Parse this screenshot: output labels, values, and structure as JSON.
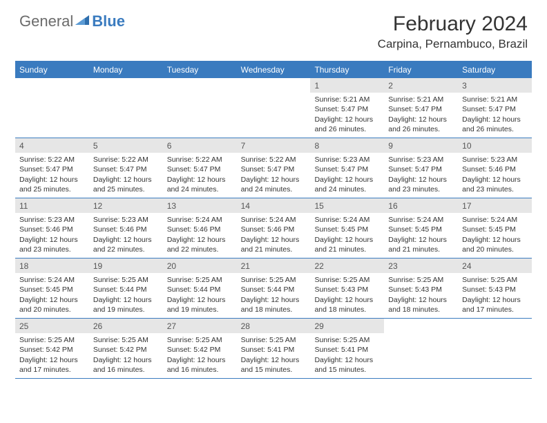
{
  "brand": {
    "general": "General",
    "blue": "Blue",
    "icon_color": "#2f6fad"
  },
  "title": "February 2024",
  "location": "Carpina, Pernambuco, Brazil",
  "colors": {
    "brand_blue": "#3a7bbf",
    "daynum_bg": "#e6e6e6",
    "text": "#333333"
  },
  "day_names": [
    "Sunday",
    "Monday",
    "Tuesday",
    "Wednesday",
    "Thursday",
    "Friday",
    "Saturday"
  ],
  "weeks": [
    [
      {
        "day": "",
        "sunrise": "",
        "sunset": "",
        "daylight": ""
      },
      {
        "day": "",
        "sunrise": "",
        "sunset": "",
        "daylight": ""
      },
      {
        "day": "",
        "sunrise": "",
        "sunset": "",
        "daylight": ""
      },
      {
        "day": "",
        "sunrise": "",
        "sunset": "",
        "daylight": ""
      },
      {
        "day": "1",
        "sunrise": "Sunrise: 5:21 AM",
        "sunset": "Sunset: 5:47 PM",
        "daylight": "Daylight: 12 hours and 26 minutes."
      },
      {
        "day": "2",
        "sunrise": "Sunrise: 5:21 AM",
        "sunset": "Sunset: 5:47 PM",
        "daylight": "Daylight: 12 hours and 26 minutes."
      },
      {
        "day": "3",
        "sunrise": "Sunrise: 5:21 AM",
        "sunset": "Sunset: 5:47 PM",
        "daylight": "Daylight: 12 hours and 26 minutes."
      }
    ],
    [
      {
        "day": "4",
        "sunrise": "Sunrise: 5:22 AM",
        "sunset": "Sunset: 5:47 PM",
        "daylight": "Daylight: 12 hours and 25 minutes."
      },
      {
        "day": "5",
        "sunrise": "Sunrise: 5:22 AM",
        "sunset": "Sunset: 5:47 PM",
        "daylight": "Daylight: 12 hours and 25 minutes."
      },
      {
        "day": "6",
        "sunrise": "Sunrise: 5:22 AM",
        "sunset": "Sunset: 5:47 PM",
        "daylight": "Daylight: 12 hours and 24 minutes."
      },
      {
        "day": "7",
        "sunrise": "Sunrise: 5:22 AM",
        "sunset": "Sunset: 5:47 PM",
        "daylight": "Daylight: 12 hours and 24 minutes."
      },
      {
        "day": "8",
        "sunrise": "Sunrise: 5:23 AM",
        "sunset": "Sunset: 5:47 PM",
        "daylight": "Daylight: 12 hours and 24 minutes."
      },
      {
        "day": "9",
        "sunrise": "Sunrise: 5:23 AM",
        "sunset": "Sunset: 5:47 PM",
        "daylight": "Daylight: 12 hours and 23 minutes."
      },
      {
        "day": "10",
        "sunrise": "Sunrise: 5:23 AM",
        "sunset": "Sunset: 5:46 PM",
        "daylight": "Daylight: 12 hours and 23 minutes."
      }
    ],
    [
      {
        "day": "11",
        "sunrise": "Sunrise: 5:23 AM",
        "sunset": "Sunset: 5:46 PM",
        "daylight": "Daylight: 12 hours and 23 minutes."
      },
      {
        "day": "12",
        "sunrise": "Sunrise: 5:23 AM",
        "sunset": "Sunset: 5:46 PM",
        "daylight": "Daylight: 12 hours and 22 minutes."
      },
      {
        "day": "13",
        "sunrise": "Sunrise: 5:24 AM",
        "sunset": "Sunset: 5:46 PM",
        "daylight": "Daylight: 12 hours and 22 minutes."
      },
      {
        "day": "14",
        "sunrise": "Sunrise: 5:24 AM",
        "sunset": "Sunset: 5:46 PM",
        "daylight": "Daylight: 12 hours and 21 minutes."
      },
      {
        "day": "15",
        "sunrise": "Sunrise: 5:24 AM",
        "sunset": "Sunset: 5:45 PM",
        "daylight": "Daylight: 12 hours and 21 minutes."
      },
      {
        "day": "16",
        "sunrise": "Sunrise: 5:24 AM",
        "sunset": "Sunset: 5:45 PM",
        "daylight": "Daylight: 12 hours and 21 minutes."
      },
      {
        "day": "17",
        "sunrise": "Sunrise: 5:24 AM",
        "sunset": "Sunset: 5:45 PM",
        "daylight": "Daylight: 12 hours and 20 minutes."
      }
    ],
    [
      {
        "day": "18",
        "sunrise": "Sunrise: 5:24 AM",
        "sunset": "Sunset: 5:45 PM",
        "daylight": "Daylight: 12 hours and 20 minutes."
      },
      {
        "day": "19",
        "sunrise": "Sunrise: 5:25 AM",
        "sunset": "Sunset: 5:44 PM",
        "daylight": "Daylight: 12 hours and 19 minutes."
      },
      {
        "day": "20",
        "sunrise": "Sunrise: 5:25 AM",
        "sunset": "Sunset: 5:44 PM",
        "daylight": "Daylight: 12 hours and 19 minutes."
      },
      {
        "day": "21",
        "sunrise": "Sunrise: 5:25 AM",
        "sunset": "Sunset: 5:44 PM",
        "daylight": "Daylight: 12 hours and 18 minutes."
      },
      {
        "day": "22",
        "sunrise": "Sunrise: 5:25 AM",
        "sunset": "Sunset: 5:43 PM",
        "daylight": "Daylight: 12 hours and 18 minutes."
      },
      {
        "day": "23",
        "sunrise": "Sunrise: 5:25 AM",
        "sunset": "Sunset: 5:43 PM",
        "daylight": "Daylight: 12 hours and 18 minutes."
      },
      {
        "day": "24",
        "sunrise": "Sunrise: 5:25 AM",
        "sunset": "Sunset: 5:43 PM",
        "daylight": "Daylight: 12 hours and 17 minutes."
      }
    ],
    [
      {
        "day": "25",
        "sunrise": "Sunrise: 5:25 AM",
        "sunset": "Sunset: 5:42 PM",
        "daylight": "Daylight: 12 hours and 17 minutes."
      },
      {
        "day": "26",
        "sunrise": "Sunrise: 5:25 AM",
        "sunset": "Sunset: 5:42 PM",
        "daylight": "Daylight: 12 hours and 16 minutes."
      },
      {
        "day": "27",
        "sunrise": "Sunrise: 5:25 AM",
        "sunset": "Sunset: 5:42 PM",
        "daylight": "Daylight: 12 hours and 16 minutes."
      },
      {
        "day": "28",
        "sunrise": "Sunrise: 5:25 AM",
        "sunset": "Sunset: 5:41 PM",
        "daylight": "Daylight: 12 hours and 15 minutes."
      },
      {
        "day": "29",
        "sunrise": "Sunrise: 5:25 AM",
        "sunset": "Sunset: 5:41 PM",
        "daylight": "Daylight: 12 hours and 15 minutes."
      },
      {
        "day": "",
        "sunrise": "",
        "sunset": "",
        "daylight": ""
      },
      {
        "day": "",
        "sunrise": "",
        "sunset": "",
        "daylight": ""
      }
    ]
  ]
}
